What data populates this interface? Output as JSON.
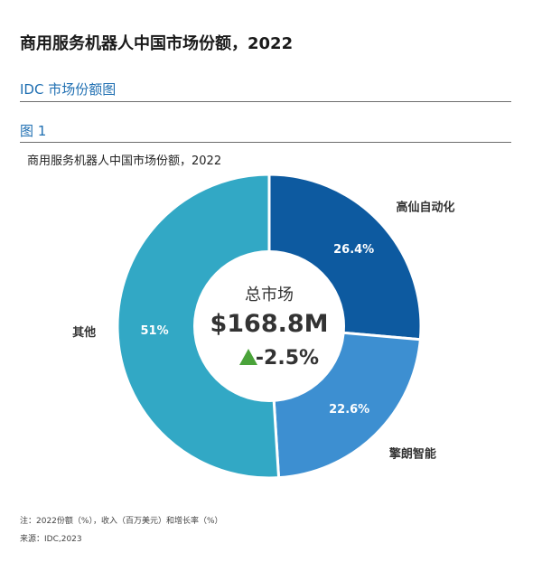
{
  "header": {
    "page_title": "商用服务机器人中国市场份额，2022",
    "section_title": "IDC 市场份额图",
    "figure_label": "图 1"
  },
  "chart_data": {
    "type": "pie",
    "donut": true,
    "title": "商用服务机器人中国市场份额，2022",
    "slices": [
      {
        "label": "高仙自动化",
        "value": 26.4,
        "value_label": "26.4%",
        "color": "#0d5aa0"
      },
      {
        "label": "擎朗智能",
        "value": 22.6,
        "value_label": "22.6%",
        "color": "#3d8fd1"
      },
      {
        "label": "其他",
        "value": 51.0,
        "value_label": "51%",
        "color": "#32a8c5"
      }
    ],
    "center": {
      "label": "总市场",
      "value_label": "$168.8M",
      "change_label": "-2.5%",
      "change_icon": "triangle-up-icon",
      "change_icon_color": "#4aa33a"
    }
  },
  "footer": {
    "note": "注：2022份额（%），收入（百万美元）和增长率（%）",
    "source": "来源：IDC,2023"
  }
}
